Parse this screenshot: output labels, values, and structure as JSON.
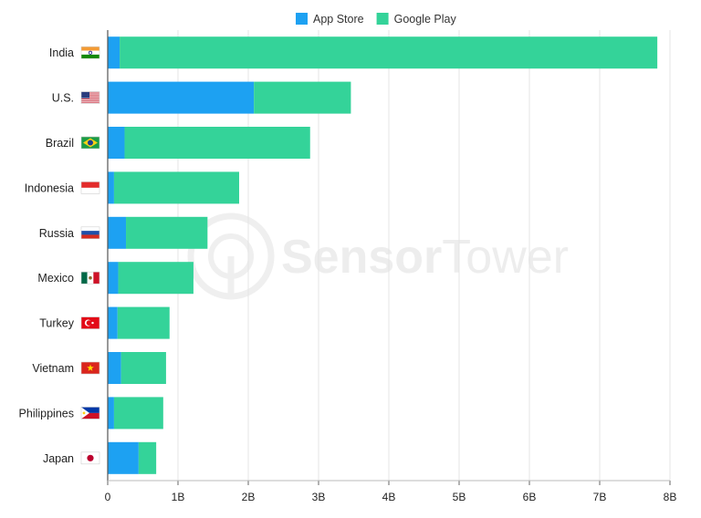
{
  "chart_data": {
    "type": "bar",
    "orientation": "horizontal",
    "stacked": true,
    "categories": [
      "India",
      "U.S.",
      "Brazil",
      "Indonesia",
      "Russia",
      "Mexico",
      "Turkey",
      "Vietnam",
      "Philippines",
      "Japan"
    ],
    "flags": [
      "india-flag-icon",
      "us-flag-icon",
      "brazil-flag-icon",
      "indonesia-flag-icon",
      "russia-flag-icon",
      "mexico-flag-icon",
      "turkey-flag-icon",
      "vietnam-flag-icon",
      "philippines-flag-icon",
      "japan-flag-icon"
    ],
    "series": [
      {
        "name": "App Store",
        "color": "#1da1f2",
        "values": [
          0.17,
          2.08,
          0.24,
          0.09,
          0.26,
          0.15,
          0.14,
          0.19,
          0.09,
          0.44
        ]
      },
      {
        "name": "Google Play",
        "color": "#34d399",
        "values": [
          7.65,
          1.38,
          2.64,
          1.78,
          1.16,
          1.07,
          0.74,
          0.64,
          0.7,
          0.25
        ]
      }
    ],
    "x_ticks": [
      "0",
      "1B",
      "2B",
      "3B",
      "4B",
      "5B",
      "6B",
      "7B",
      "8B"
    ],
    "xlim": [
      0,
      8
    ],
    "x_unit": "billions",
    "legend_position": "top-center",
    "grid": "vertical",
    "watermark": {
      "bold": "Sensor",
      "regular": "Tower"
    }
  }
}
